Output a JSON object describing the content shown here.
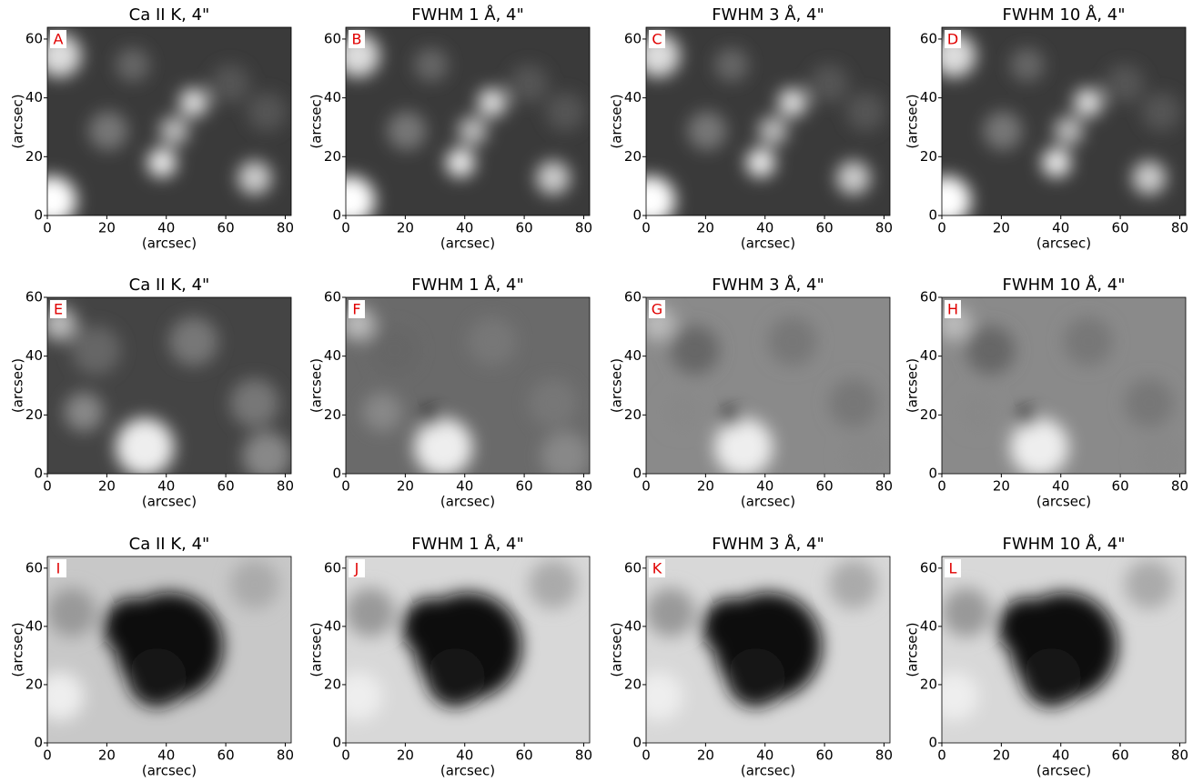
{
  "chart_data": [
    {
      "type": "image",
      "title": "Ca II K, 4\"",
      "panel_label": "A",
      "xlabel": "(arcsec)",
      "ylabel": "(arcsec)",
      "xlim": [
        0,
        82
      ],
      "ylim": [
        0,
        64
      ],
      "xticks": [
        0,
        20,
        40,
        60,
        80
      ],
      "yticks": [
        0,
        20,
        40,
        60
      ]
    },
    {
      "type": "image",
      "title": "FWHM 1 Å, 4\"",
      "panel_label": "B",
      "xlabel": "(arcsec)",
      "ylabel": "(arcsec)",
      "xlim": [
        0,
        82
      ],
      "ylim": [
        0,
        64
      ],
      "xticks": [
        0,
        20,
        40,
        60,
        80
      ],
      "yticks": [
        0,
        20,
        40,
        60
      ]
    },
    {
      "type": "image",
      "title": "FWHM 3 Å, 4\"",
      "panel_label": "C",
      "xlabel": "(arcsec)",
      "ylabel": "(arcsec)",
      "xlim": [
        0,
        82
      ],
      "ylim": [
        0,
        64
      ],
      "xticks": [
        0,
        20,
        40,
        60,
        80
      ],
      "yticks": [
        0,
        20,
        40,
        60
      ]
    },
    {
      "type": "image",
      "title": "FWHM 10 Å, 4\"",
      "panel_label": "D",
      "xlabel": "(arcsec)",
      "ylabel": "(arcsec)",
      "xlim": [
        0,
        82
      ],
      "ylim": [
        0,
        64
      ],
      "xticks": [
        0,
        20,
        40,
        60,
        80
      ],
      "yticks": [
        0,
        20,
        40,
        60
      ]
    },
    {
      "type": "image",
      "title": "Ca II K, 4\"",
      "panel_label": "E",
      "xlabel": "(arcsec)",
      "ylabel": "(arcsec)",
      "xlim": [
        0,
        82
      ],
      "ylim": [
        0,
        60
      ],
      "xticks": [
        0,
        20,
        40,
        60,
        80
      ],
      "yticks": [
        0,
        20,
        40,
        60
      ]
    },
    {
      "type": "image",
      "title": "FWHM 1 Å, 4\"",
      "panel_label": "F",
      "xlabel": "(arcsec)",
      "ylabel": "(arcsec)",
      "xlim": [
        0,
        82
      ],
      "ylim": [
        0,
        60
      ],
      "xticks": [
        0,
        20,
        40,
        60,
        80
      ],
      "yticks": [
        0,
        20,
        40,
        60
      ]
    },
    {
      "type": "image",
      "title": "FWHM 3 Å, 4\"",
      "panel_label": "G",
      "xlabel": "(arcsec)",
      "ylabel": "(arcsec)",
      "xlim": [
        0,
        82
      ],
      "ylim": [
        0,
        60
      ],
      "xticks": [
        0,
        20,
        40,
        60,
        80
      ],
      "yticks": [
        0,
        20,
        40,
        60
      ]
    },
    {
      "type": "image",
      "title": "FWHM 10 Å, 4\"",
      "panel_label": "H",
      "xlabel": "(arcsec)",
      "ylabel": "(arcsec)",
      "xlim": [
        0,
        82
      ],
      "ylim": [
        0,
        60
      ],
      "xticks": [
        0,
        20,
        40,
        60,
        80
      ],
      "yticks": [
        0,
        20,
        40,
        60
      ]
    },
    {
      "type": "image",
      "title": "Ca II K, 4\"",
      "panel_label": "I",
      "xlabel": "(arcsec)",
      "ylabel": "(arcsec)",
      "xlim": [
        0,
        82
      ],
      "ylim": [
        0,
        64
      ],
      "xticks": [
        0,
        20,
        40,
        60,
        80
      ],
      "yticks": [
        0,
        20,
        40,
        60
      ]
    },
    {
      "type": "image",
      "title": "FWHM 1 Å, 4\"",
      "panel_label": "J",
      "xlabel": "(arcsec)",
      "ylabel": "(arcsec)",
      "xlim": [
        0,
        82
      ],
      "ylim": [
        0,
        64
      ],
      "xticks": [
        0,
        20,
        40,
        60,
        80
      ],
      "yticks": [
        0,
        20,
        40,
        60
      ]
    },
    {
      "type": "image",
      "title": "FWHM 3 Å, 4\"",
      "panel_label": "K",
      "xlabel": "(arcsec)",
      "ylabel": "(arcsec)",
      "xlim": [
        0,
        82
      ],
      "ylim": [
        0,
        64
      ],
      "xticks": [
        0,
        20,
        40,
        60,
        80
      ],
      "yticks": [
        0,
        20,
        40,
        60
      ]
    },
    {
      "type": "image",
      "title": "FWHM 10 Å, 4\"",
      "panel_label": "L",
      "xlabel": "(arcsec)",
      "ylabel": "(arcsec)",
      "xlim": [
        0,
        82
      ],
      "ylim": [
        0,
        64
      ],
      "xticks": [
        0,
        20,
        40,
        60,
        80
      ],
      "yticks": [
        0,
        20,
        40,
        60
      ]
    }
  ]
}
